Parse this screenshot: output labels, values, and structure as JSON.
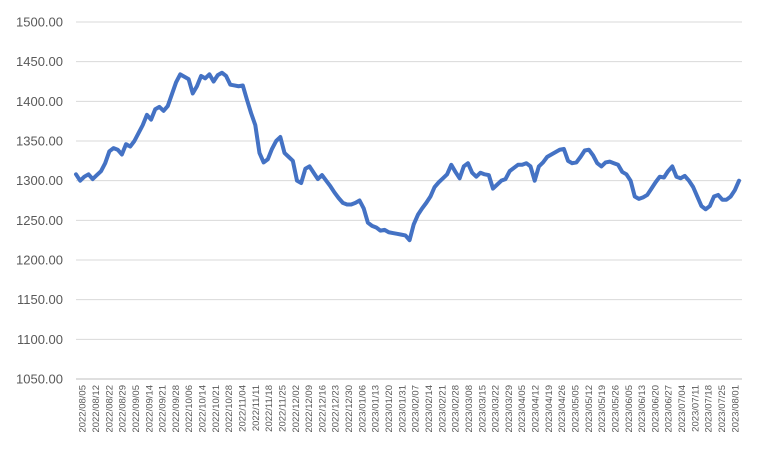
{
  "chart_data": {
    "type": "line",
    "title": "",
    "xlabel": "",
    "ylabel": "",
    "ylim": [
      1050,
      1500
    ],
    "grid": true,
    "legend": "none",
    "y_ticks": [
      "1050.00",
      "1100.00",
      "1150.00",
      "1200.00",
      "1250.00",
      "1300.00",
      "1350.00",
      "1400.00",
      "1450.00",
      "1500.00"
    ],
    "x_ticks": [
      "2022/08/05",
      "2022/08/12",
      "2022/08/22",
      "2022/08/29",
      "2022/09/05",
      "2022/09/14",
      "2022/09/21",
      "2022/09/28",
      "2022/10/06",
      "2022/10/14",
      "2022/10/21",
      "2022/10/28",
      "2022/11/04",
      "2022/11/11",
      "2022/11/18",
      "2022/11/25",
      "2022/12/02",
      "2022/12/09",
      "2022/12/16",
      "2022/12/23",
      "2022/12/30",
      "2023/01/06",
      "2023/01/13",
      "2023/01/20",
      "2023/01/31",
      "2023/02/07",
      "2023/02/14",
      "2023/02/21",
      "2023/02/28",
      "2023/03/08",
      "2023/03/15",
      "2023/03/22",
      "2023/03/29",
      "2023/04/05",
      "2023/04/12",
      "2023/04/19",
      "2023/04/26",
      "2023/05/05",
      "2023/05/12",
      "2023/05/19",
      "2023/05/26",
      "2023/06/05",
      "2023/06/13",
      "2023/06/20",
      "2023/06/27",
      "2023/07/04",
      "2023/07/11",
      "2023/07/18",
      "2023/07/25",
      "2023/08/01"
    ],
    "colors": {
      "series": "#4472c4",
      "grid": "#d9d9d9",
      "text": "#595959"
    },
    "series": [
      {
        "values": [
          1308,
          1300,
          1305,
          1308,
          1302,
          1307,
          1312,
          1322,
          1337,
          1341,
          1339,
          1333,
          1346,
          1343,
          1350,
          1360,
          1370,
          1383,
          1377,
          1390,
          1393,
          1388,
          1394,
          1409,
          1424,
          1434,
          1431,
          1428,
          1410,
          1419,
          1432,
          1429,
          1434,
          1425,
          1433,
          1436,
          1432,
          1421,
          1420,
          1419,
          1420,
          1402,
          1385,
          1370,
          1335,
          1323,
          1327,
          1340,
          1350,
          1355,
          1335,
          1330,
          1325,
          1300,
          1297,
          1315,
          1318,
          1310,
          1302,
          1307,
          1300,
          1293,
          1285,
          1278,
          1272,
          1270,
          1270,
          1272,
          1275,
          1265,
          1247,
          1243,
          1241,
          1237,
          1238,
          1235,
          1234,
          1233,
          1232,
          1231,
          1225,
          1245,
          1257,
          1265,
          1272,
          1280,
          1292,
          1298,
          1303,
          1308,
          1320,
          1311,
          1303,
          1318,
          1322,
          1310,
          1305,
          1310,
          1308,
          1307,
          1290,
          1295,
          1300,
          1302,
          1312,
          1316,
          1320,
          1320,
          1322,
          1318,
          1300,
          1318,
          1323,
          1330,
          1333,
          1336,
          1339,
          1340,
          1325,
          1322,
          1323,
          1330,
          1338,
          1339,
          1332,
          1322,
          1318,
          1323,
          1324,
          1322,
          1320,
          1311,
          1308,
          1300,
          1280,
          1277,
          1279,
          1282,
          1290,
          1298,
          1305,
          1304,
          1312,
          1318,
          1305,
          1303,
          1306,
          1300,
          1292,
          1280,
          1268,
          1264,
          1268,
          1280,
          1282,
          1276,
          1276,
          1280,
          1288,
          1300
        ]
      }
    ]
  }
}
